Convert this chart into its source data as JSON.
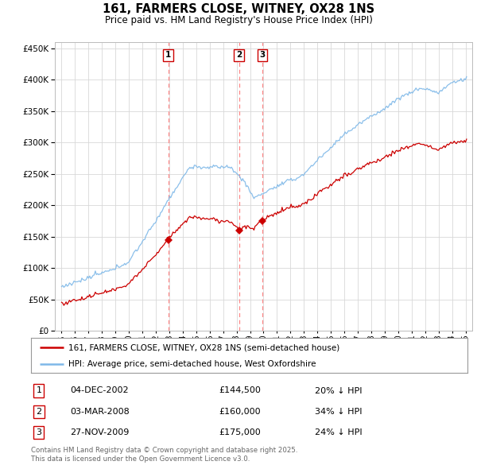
{
  "title": "161, FARMERS CLOSE, WITNEY, OX28 1NS",
  "subtitle": "Price paid vs. HM Land Registry's House Price Index (HPI)",
  "legend_line1": "161, FARMERS CLOSE, WITNEY, OX28 1NS (semi-detached house)",
  "legend_line2": "HPI: Average price, semi-detached house, West Oxfordshire",
  "footer": "Contains HM Land Registry data © Crown copyright and database right 2025.\nThis data is licensed under the Open Government Licence v3.0.",
  "transactions": [
    {
      "label": "1",
      "date": "04-DEC-2002",
      "price": 144500,
      "hpi_note": "20% ↓ HPI",
      "x_year": 2002.92
    },
    {
      "label": "2",
      "date": "03-MAR-2008",
      "price": 160000,
      "hpi_note": "34% ↓ HPI",
      "x_year": 2008.17
    },
    {
      "label": "3",
      "date": "27-NOV-2009",
      "price": 175000,
      "hpi_note": "24% ↓ HPI",
      "x_year": 2009.9
    }
  ],
  "ylim": [
    0,
    460000
  ],
  "yticks": [
    0,
    50000,
    100000,
    150000,
    200000,
    250000,
    300000,
    350000,
    400000,
    450000
  ],
  "xlim": [
    1994.5,
    2025.5
  ],
  "hpi_color": "#7EB8E8",
  "price_color": "#CC0000",
  "vline_color": "#FF8888",
  "background_color": "#ffffff",
  "grid_color": "#d8d8d8"
}
